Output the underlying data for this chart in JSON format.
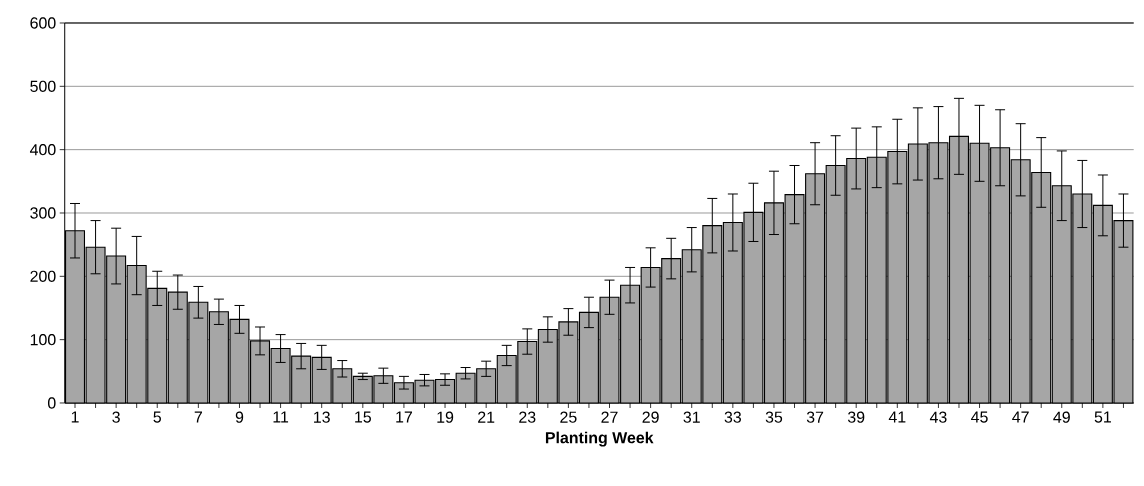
{
  "chart_data": {
    "type": "bar",
    "xlabel": "**Planting Week**",
    "categories": [
      "1",
      null,
      "3",
      null,
      "5",
      null,
      "7",
      null,
      "9",
      null,
      "11",
      null,
      "13",
      null,
      "15",
      null,
      "17",
      null,
      "19",
      null,
      "21",
      null,
      "23",
      null,
      "25",
      null,
      "27",
      null,
      "29",
      null,
      "31",
      null,
      "33",
      null,
      "35",
      null,
      "37",
      null,
      "39",
      null,
      "41",
      null,
      "43",
      null,
      "45",
      null,
      "47",
      null,
      "49",
      null,
      "51",
      null
    ],
    "values": [
      272,
      246,
      232,
      217,
      181,
      175,
      159,
      144,
      132,
      98,
      86,
      74,
      72,
      54,
      42,
      43,
      32,
      36,
      37,
      47,
      54,
      75,
      97,
      116,
      128,
      143,
      167,
      186,
      214,
      228,
      242,
      280,
      285,
      301,
      316,
      329,
      362,
      375,
      386,
      388,
      397,
      409,
      411,
      421,
      410,
      403,
      384,
      364,
      343,
      330,
      312,
      288
    ],
    "errors": [
      43,
      42,
      44,
      46,
      27,
      27,
      25,
      20,
      22,
      22,
      22,
      20,
      19,
      13,
      5,
      12,
      10,
      9,
      9,
      9,
      12,
      16,
      20,
      20,
      21,
      24,
      27,
      28,
      31,
      32,
      35,
      43,
      45,
      46,
      50,
      46,
      49,
      47,
      48,
      48,
      51,
      57,
      57,
      60,
      60,
      60,
      57,
      55,
      55,
      53,
      48,
      42
    ],
    "color": "#a6a6a6",
    "ylim": [
      0,
      600
    ],
    "yticks": [
      0,
      100,
      200,
      300,
      400,
      500,
      600
    ],
    "grid": "y"
  }
}
